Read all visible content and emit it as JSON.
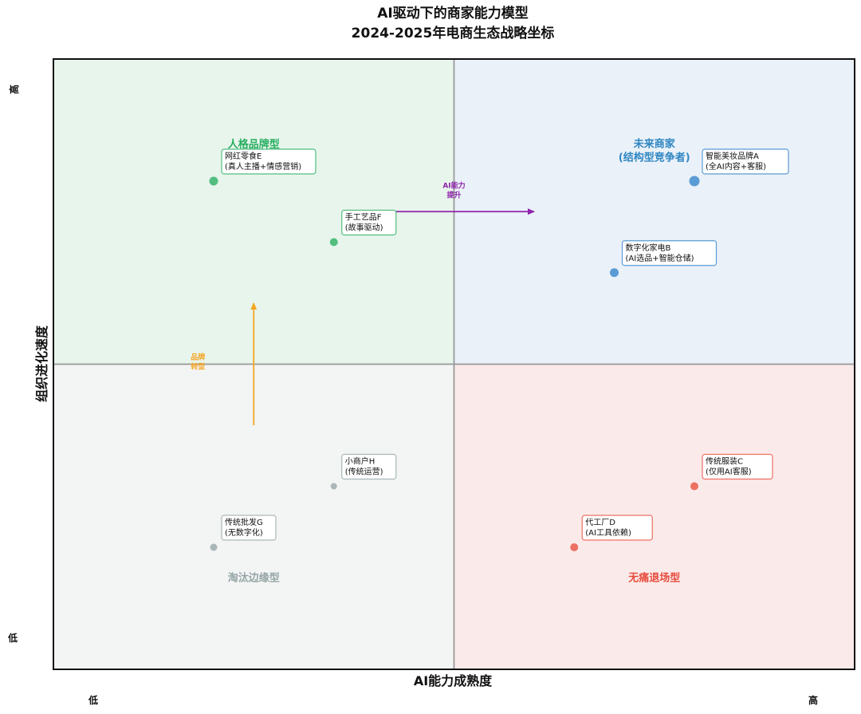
{
  "chart_data": {
    "type": "scatter",
    "title_lines": [
      "AI驱动下的商家能力模型",
      "2024-2025年电商生态战略坐标"
    ],
    "xlabel": "AI能力成熟度",
    "ylabel": "组织进化速度",
    "xlim": [
      0,
      10
    ],
    "ylim": [
      0,
      10
    ],
    "x_ticks": {
      "low": "低",
      "high": "高"
    },
    "y_ticks": {
      "low": "低",
      "high": "高"
    },
    "grid": false,
    "divider": {
      "x": 5,
      "y": 5
    },
    "quadrants": [
      {
        "id": "top-left",
        "label": "人格品牌型",
        "color": "#27ae60",
        "fill": "#e8f5ec",
        "label_pos": [
          2.5,
          8.6
        ]
      },
      {
        "id": "top-right",
        "label": "未来商家\n(结构型竞争者)",
        "color": "#2e86c1",
        "fill": "#eaf1f9",
        "label_pos": [
          7.5,
          8.5
        ]
      },
      {
        "id": "bottom-left",
        "label": "淘汰边缘型",
        "color": "#95a5a6",
        "fill": "#f3f4f4",
        "label_pos": [
          2.5,
          1.5
        ]
      },
      {
        "id": "bottom-right",
        "label": "无痛退场型",
        "color": "#e74c3c",
        "fill": "#fbeaea",
        "label_pos": [
          7.5,
          1.5
        ]
      }
    ],
    "points": [
      {
        "name": "智能美妆品牌A",
        "desc": "(全AI内容+客服)",
        "x": 8,
        "y": 8,
        "color": "#5b9bd5",
        "size": 6.5,
        "border": "#5b9bd5"
      },
      {
        "name": "数字化家电B",
        "desc": "(AI选品+智能仓储)",
        "x": 7,
        "y": 6.5,
        "color": "#5b9bd5",
        "size": 5.5,
        "border": "#5b9bd5"
      },
      {
        "name": "传统服装C",
        "desc": "(仅用AI客服)",
        "x": 8,
        "y": 3,
        "color": "#ec7063",
        "size": 5,
        "border": "#ec7063"
      },
      {
        "name": "代工厂D",
        "desc": "(AI工具依赖)",
        "x": 6.5,
        "y": 2,
        "color": "#ec7063",
        "size": 5,
        "border": "#ec7063"
      },
      {
        "name": "网红零食E",
        "desc": "(真人主播+情感营销)",
        "x": 2,
        "y": 8,
        "color": "#52be80",
        "size": 5.5,
        "border": "#52be80"
      },
      {
        "name": "手工艺品F",
        "desc": "(故事驱动)",
        "x": 3.5,
        "y": 7,
        "color": "#52be80",
        "size": 5,
        "border": "#52be80"
      },
      {
        "name": "传统批发G",
        "desc": "(无数字化)",
        "x": 2,
        "y": 2,
        "color": "#aab7b8",
        "size": 4.5,
        "border": "#aab7b8"
      },
      {
        "name": "小商户H",
        "desc": "(传统运营)",
        "x": 3.5,
        "y": 3,
        "color": "#aab7b8",
        "size": 4,
        "border": "#aab7b8"
      }
    ],
    "arrows": [
      {
        "label": "AI能力\n提升",
        "from": [
          4,
          7.5
        ],
        "to": [
          6,
          7.5
        ],
        "color": "#8e24aa"
      },
      {
        "label": "品牌\n转型",
        "from": [
          2.5,
          4
        ],
        "to": [
          2.5,
          6
        ],
        "color": "#f5a623"
      }
    ]
  }
}
